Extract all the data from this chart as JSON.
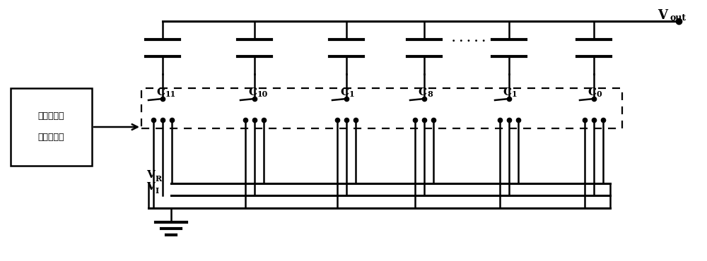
{
  "bg_color": "#ffffff",
  "line_color": "#000000",
  "fig_width": 10.0,
  "fig_height": 3.7,
  "dpi": 100,
  "cap_subs": [
    "11",
    "10",
    "1",
    "8",
    "1",
    "0"
  ],
  "box_text1": "数字伪随机",
  "box_text2": "信号发生器",
  "vout_text": "V",
  "vout_sub": "out",
  "vr_text": "V",
  "vr_sub": "R",
  "vi_text": "V",
  "vi_sub": "I"
}
